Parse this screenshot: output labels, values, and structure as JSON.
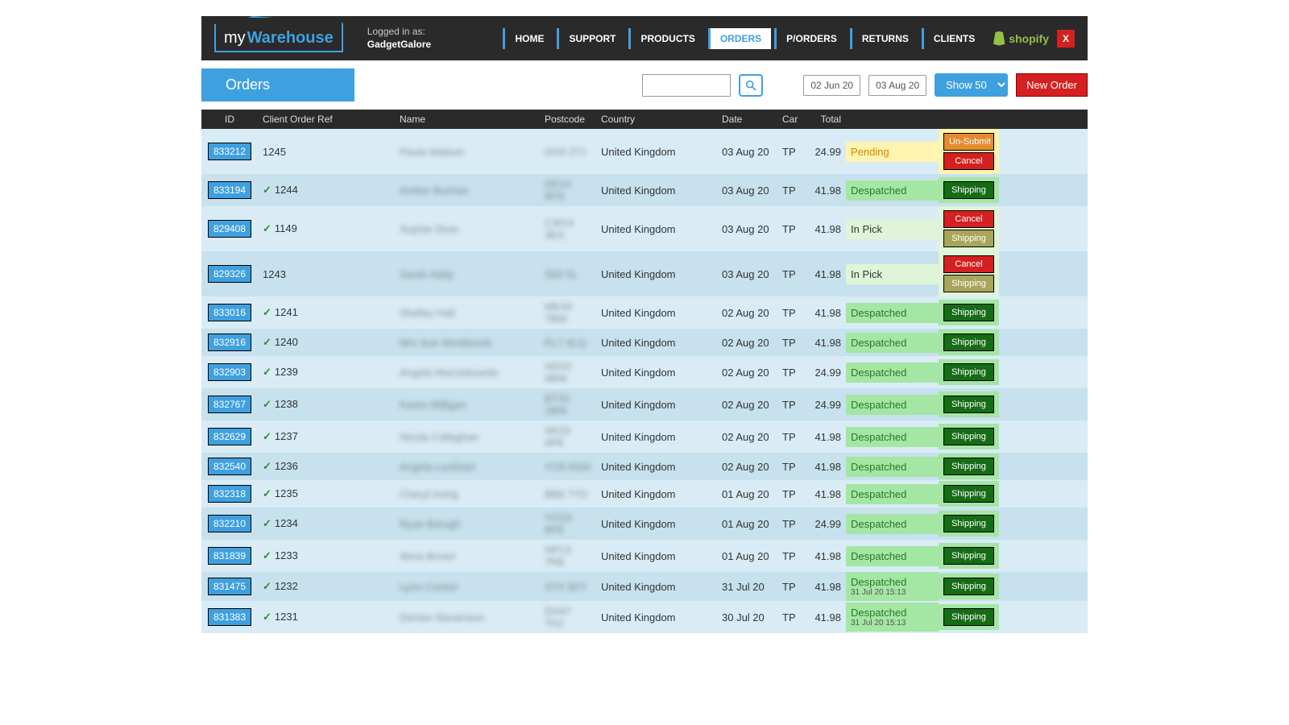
{
  "brand": {
    "prefix": "my",
    "suffix": "Warehouse"
  },
  "logged_in": {
    "label": "Logged in as:",
    "user": "GadgetGalore"
  },
  "nav": {
    "home": "HOME",
    "support": "SUPPORT",
    "products": "PRODUCTS",
    "orders": "ORDERS",
    "porders": "P/ORDERS",
    "returns": "RETURNS",
    "clients": "CLIENTS",
    "shopify": "shopify",
    "close": "X"
  },
  "toolbar": {
    "title": "Orders",
    "date_from": "02 Jun 20",
    "date_to": "03 Aug 20",
    "show_label": "Show 50",
    "new_order": "New Order"
  },
  "columns": {
    "id": "ID",
    "ref": "Client Order Ref",
    "name": "Name",
    "postcode": "Postcode",
    "country": "Country",
    "date": "Date",
    "car": "Car",
    "total": "Total"
  },
  "actions": {
    "unsubmit": "Un-Submit",
    "cancel": "Cancel",
    "shipping": "Shipping"
  },
  "status_labels": {
    "pending": "Pending",
    "despatched": "Despatched",
    "inpick": "In Pick"
  },
  "rows": [
    {
      "id": "833212",
      "check": false,
      "ref": "1245",
      "name": "Paula Watson",
      "pc": "DH3 2TJ",
      "country": "United Kingdom",
      "date": "03 Aug 20",
      "car": "TP",
      "total": "24.99",
      "status": "pending",
      "actions": [
        "unsubmit",
        "cancel"
      ],
      "parity": "even"
    },
    {
      "id": "833194",
      "check": true,
      "ref": "1244",
      "name": "Amber Buchan",
      "pc": "DE14 8FN",
      "country": "United Kingdom",
      "date": "03 Aug 20",
      "car": "TP",
      "total": "41.98",
      "status": "despatched",
      "actions": [
        "shipping"
      ],
      "parity": "odd"
    },
    {
      "id": "829408",
      "check": true,
      "ref": "1149",
      "name": "Sophie Diver",
      "pc": "CW14 3ES",
      "country": "United Kingdom",
      "date": "03 Aug 20",
      "car": "TP",
      "total": "41.98",
      "status": "inpick",
      "actions": [
        "cancel",
        "shipping-dim"
      ],
      "parity": "even"
    },
    {
      "id": "829326",
      "check": false,
      "ref": "1243",
      "name": "Sarah Addy",
      "pc": "S60 5L",
      "country": "United Kingdom",
      "date": "03 Aug 20",
      "car": "TP",
      "total": "41.98",
      "status": "inpick",
      "actions": [
        "cancel",
        "shipping-dim"
      ],
      "parity": "odd"
    },
    {
      "id": "833016",
      "check": true,
      "ref": "1241",
      "name": "Shelley Hall",
      "pc": "MK43 7BW",
      "country": "United Kingdom",
      "date": "02 Aug 20",
      "car": "TP",
      "total": "41.98",
      "status": "despatched",
      "actions": [
        "shipping"
      ],
      "parity": "even"
    },
    {
      "id": "832916",
      "check": true,
      "ref": "1240",
      "name": "Mrs Sue Westbrook",
      "pc": "PL7 4LQ",
      "country": "United Kingdom",
      "date": "02 Aug 20",
      "car": "TP",
      "total": "41.98",
      "status": "despatched",
      "actions": [
        "shipping"
      ],
      "parity": "odd"
    },
    {
      "id": "832903",
      "check": true,
      "ref": "1239",
      "name": "Angela Marcinkowski",
      "pc": "HD10 0BW",
      "country": "United Kingdom",
      "date": "02 Aug 20",
      "car": "TP",
      "total": "24.99",
      "status": "despatched",
      "actions": [
        "shipping"
      ],
      "parity": "even"
    },
    {
      "id": "832767",
      "check": true,
      "ref": "1238",
      "name": "Karen Milligan",
      "pc": "BT32 1BW",
      "country": "United Kingdom",
      "date": "02 Aug 20",
      "car": "TP",
      "total": "24.99",
      "status": "despatched",
      "actions": [
        "shipping"
      ],
      "parity": "odd"
    },
    {
      "id": "832629",
      "check": true,
      "ref": "1237",
      "name": "Nicola Callaghan",
      "pc": "SK23 0PE",
      "country": "United Kingdom",
      "date": "02 Aug 20",
      "car": "TP",
      "total": "41.98",
      "status": "despatched",
      "actions": [
        "shipping"
      ],
      "parity": "even"
    },
    {
      "id": "832540",
      "check": true,
      "ref": "1236",
      "name": "Angela Lockhart",
      "pc": "YO8 8SW",
      "country": "United Kingdom",
      "date": "02 Aug 20",
      "car": "TP",
      "total": "41.98",
      "status": "despatched",
      "actions": [
        "shipping"
      ],
      "parity": "odd"
    },
    {
      "id": "832318",
      "check": true,
      "ref": "1235",
      "name": "Cheryl Irving",
      "pc": "BB8 7YD",
      "country": "United Kingdom",
      "date": "01 Aug 20",
      "car": "TP",
      "total": "41.98",
      "status": "despatched",
      "actions": [
        "shipping"
      ],
      "parity": "even"
    },
    {
      "id": "832210",
      "check": true,
      "ref": "1234",
      "name": "Ryan Barugh",
      "pc": "YO19 8PE",
      "country": "United Kingdom",
      "date": "01 Aug 20",
      "car": "TP",
      "total": "24.99",
      "status": "despatched",
      "actions": [
        "shipping"
      ],
      "parity": "odd"
    },
    {
      "id": "831839",
      "check": true,
      "ref": "1233",
      "name": "Alma Brown",
      "pc": "HP13 7RE",
      "country": "United Kingdom",
      "date": "01 Aug 20",
      "car": "TP",
      "total": "41.98",
      "status": "despatched",
      "actions": [
        "shipping"
      ],
      "parity": "even"
    },
    {
      "id": "831475",
      "check": true,
      "ref": "1232",
      "name": "Lynn Cocker",
      "pc": "ST4 3DY",
      "country": "United Kingdom",
      "date": "31 Jul 20",
      "car": "TP",
      "total": "41.98",
      "status": "despatched",
      "status_sub": "31 Jul 20 15:13",
      "actions": [
        "shipping"
      ],
      "parity": "odd"
    },
    {
      "id": "831383",
      "check": true,
      "ref": "1231",
      "name": "Denise Stevenson",
      "pc": "DH47 7HJ",
      "country": "United Kingdom",
      "date": "30 Jul 20",
      "car": "TP",
      "total": "41.98",
      "status": "despatched",
      "status_sub": "31 Jul 20 15:13",
      "actions": [
        "shipping"
      ],
      "parity": "even"
    }
  ],
  "colors": {
    "accent": "#3fa0e0",
    "dark": "#2a2a2a",
    "red": "#d42020",
    "green_btn": "#166c16",
    "orange_btn": "#e58a2e",
    "row_even": "#d9ecf5",
    "row_odd": "#c7e1ee",
    "status_pending_bg": "#fff3b0",
    "status_despatched_bg": "#a4e6a4",
    "status_inpick_bg": "#e0f5d8"
  }
}
